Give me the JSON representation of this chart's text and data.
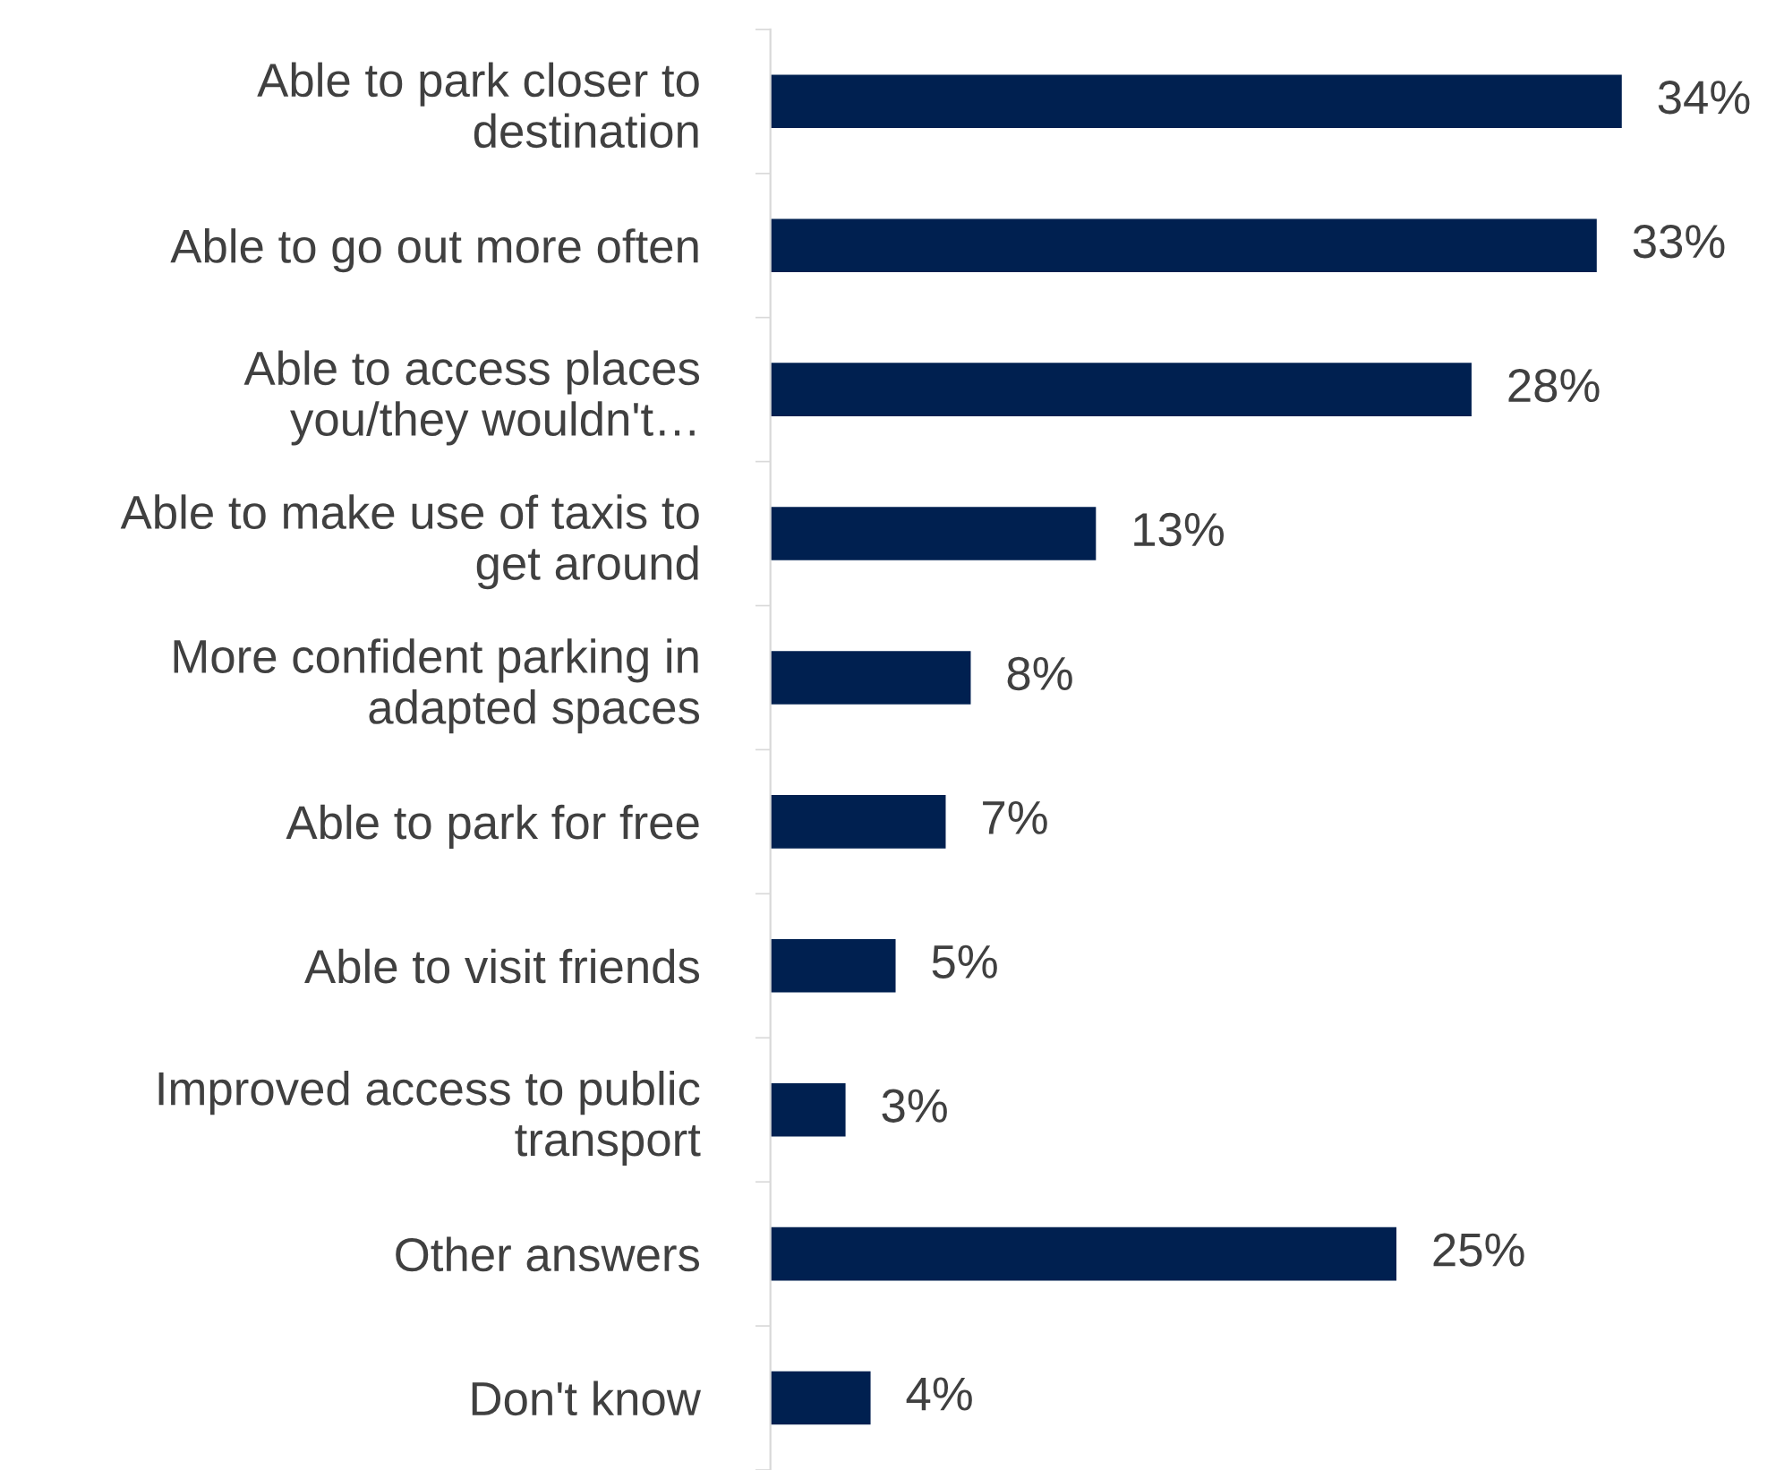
{
  "chart_data": {
    "type": "bar",
    "orientation": "horizontal",
    "categories": [
      "Able to park closer to\ndestination",
      "Able to go out more often",
      "Able to access places\nyou/they wouldn't…",
      "Able to make use of taxis to\nget around",
      "More confident parking in\nadapted spaces",
      "Able to park for free",
      "Able to visit friends",
      "Improved access to public\ntransport",
      "Other answers",
      "Don't know"
    ],
    "values": [
      34,
      33,
      28,
      13,
      8,
      7,
      5,
      3,
      25,
      4
    ],
    "value_labels": [
      "34%",
      "33%",
      "28%",
      "13%",
      "8%",
      "7%",
      "5%",
      "3%",
      "25%",
      "4%"
    ],
    "color": "#002050",
    "grid": false,
    "legend": false,
    "tick_labels": "y"
  }
}
